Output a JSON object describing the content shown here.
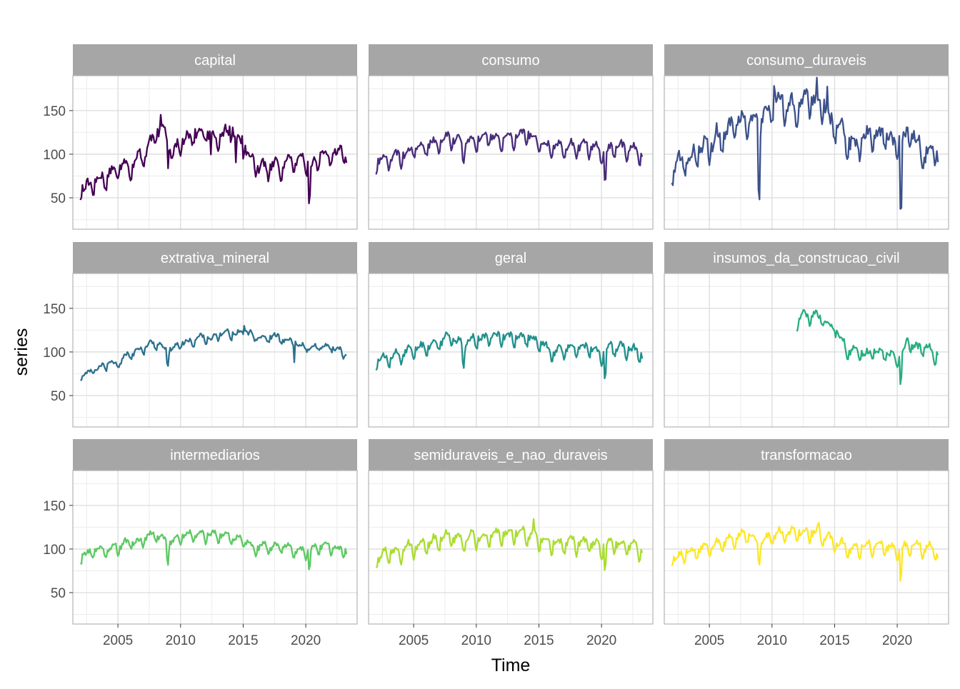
{
  "chart_data": {
    "type": "line",
    "layout": "facet-grid-3x3",
    "xlabel": "Time",
    "ylabel": "series",
    "xlim": [
      2001.4,
      2024.1
    ],
    "ylim": [
      14,
      190
    ],
    "x_ticks": [
      2005,
      2010,
      2015,
      2020
    ],
    "y_ticks": [
      50,
      100,
      150
    ],
    "grid": true,
    "legend": "none",
    "start_year": 2002,
    "end_year": 2023.25,
    "panels": [
      {
        "name": "capital",
        "color": "#440154",
        "start_year": 2002,
        "anchors": [
          [
            2002,
            60
          ],
          [
            2003,
            64
          ],
          [
            2004,
            72
          ],
          [
            2005,
            80
          ],
          [
            2006,
            86
          ],
          [
            2007,
            95
          ],
          [
            2008,
            118
          ],
          [
            2008.9,
            122
          ],
          [
            2009.3,
            98
          ],
          [
            2010,
            112
          ],
          [
            2011,
            122
          ],
          [
            2012,
            120
          ],
          [
            2013,
            118
          ],
          [
            2014,
            122
          ],
          [
            2015,
            112
          ],
          [
            2015.5,
            95
          ],
          [
            2016,
            82
          ],
          [
            2017,
            82
          ],
          [
            2018,
            86
          ],
          [
            2019,
            90
          ],
          [
            2020,
            86
          ],
          [
            2020.5,
            85
          ],
          [
            2021,
            95
          ],
          [
            2022,
            100
          ],
          [
            2023,
            98
          ],
          [
            2023.25,
            95
          ]
        ],
        "amplitude": 11,
        "noise": 5,
        "spikes": [
          [
            2009.0,
            -18
          ],
          [
            2020.3,
            -40
          ],
          [
            2013.9,
            18
          ],
          [
            2014.9,
            20
          ],
          [
            2008.4,
            20
          ],
          [
            2012.4,
            -28
          ],
          [
            2014.4,
            -25
          ]
        ]
      },
      {
        "name": "consumo",
        "color": "#472C7A",
        "start_year": 2002,
        "anchors": [
          [
            2002,
            88
          ],
          [
            2003,
            93
          ],
          [
            2004,
            96
          ],
          [
            2005,
            103
          ],
          [
            2006,
            108
          ],
          [
            2007,
            112
          ],
          [
            2008,
            117
          ],
          [
            2009,
            110
          ],
          [
            2010,
            117
          ],
          [
            2011,
            118
          ],
          [
            2012,
            117
          ],
          [
            2013,
            118
          ],
          [
            2014,
            119
          ],
          [
            2015,
            112
          ],
          [
            2016,
            105
          ],
          [
            2017,
            106
          ],
          [
            2018,
            108
          ],
          [
            2019,
            108
          ],
          [
            2020,
            100
          ],
          [
            2021,
            106
          ],
          [
            2022,
            104
          ],
          [
            2023,
            100
          ],
          [
            2023.25,
            96
          ]
        ],
        "amplitude": 11,
        "noise": 3.5,
        "spikes": [
          [
            2020.3,
            -33
          ],
          [
            2008.95,
            -10
          ]
        ]
      },
      {
        "name": "consumo_duraveis",
        "color": "#3B518B",
        "start_year": 2002,
        "anchors": [
          [
            2002,
            85
          ],
          [
            2003,
            90
          ],
          [
            2004,
            95
          ],
          [
            2005,
            110
          ],
          [
            2006,
            120
          ],
          [
            2007,
            128
          ],
          [
            2008,
            140
          ],
          [
            2009,
            130
          ],
          [
            2010,
            152
          ],
          [
            2011,
            156
          ],
          [
            2012,
            150
          ],
          [
            2013,
            155
          ],
          [
            2014,
            152
          ],
          [
            2015,
            130
          ],
          [
            2016,
            108
          ],
          [
            2017,
            112
          ],
          [
            2018,
            118
          ],
          [
            2019,
            122
          ],
          [
            2020,
            108
          ],
          [
            2021,
            118
          ],
          [
            2022,
            100
          ],
          [
            2023,
            98
          ],
          [
            2023.25,
            95
          ]
        ],
        "amplitude": 18,
        "noise": 7,
        "spikes": [
          [
            2008.95,
            -58
          ],
          [
            2020.3,
            -78
          ],
          [
            2010.2,
            24
          ],
          [
            2013.6,
            25
          ],
          [
            2014.4,
            25
          ]
        ]
      },
      {
        "name": "extrativa_mineral",
        "color": "#2C718E",
        "start_year": 2002,
        "anchors": [
          [
            2002,
            72
          ],
          [
            2003,
            78
          ],
          [
            2004,
            82
          ],
          [
            2005,
            88
          ],
          [
            2006,
            96
          ],
          [
            2007,
            102
          ],
          [
            2008,
            110
          ],
          [
            2009,
            100
          ],
          [
            2010,
            108
          ],
          [
            2011,
            114
          ],
          [
            2012,
            116
          ],
          [
            2013,
            117
          ],
          [
            2014,
            120
          ],
          [
            2015,
            124
          ],
          [
            2016,
            118
          ],
          [
            2017,
            116
          ],
          [
            2018,
            116
          ],
          [
            2019,
            110
          ],
          [
            2020,
            104
          ],
          [
            2021,
            104
          ],
          [
            2022,
            103
          ],
          [
            2023,
            100
          ],
          [
            2023.25,
            98
          ]
        ],
        "amplitude": 4.5,
        "noise": 3,
        "spikes": [
          [
            2008.95,
            -14
          ],
          [
            2019.1,
            -20
          ],
          [
            2015.1,
            8
          ]
        ]
      },
      {
        "name": "geral",
        "color": "#21908C",
        "start_year": 2002,
        "anchors": [
          [
            2002,
            88
          ],
          [
            2003,
            92
          ],
          [
            2004,
            96
          ],
          [
            2005,
            100
          ],
          [
            2006,
            104
          ],
          [
            2007,
            110
          ],
          [
            2008,
            115
          ],
          [
            2009,
            105
          ],
          [
            2010,
            114
          ],
          [
            2011,
            116
          ],
          [
            2012,
            115
          ],
          [
            2013,
            116
          ],
          [
            2014,
            116
          ],
          [
            2015,
            108
          ],
          [
            2016,
            100
          ],
          [
            2017,
            101
          ],
          [
            2018,
            103
          ],
          [
            2019,
            103
          ],
          [
            2020,
            97
          ],
          [
            2021,
            104
          ],
          [
            2022,
            102
          ],
          [
            2023,
            98
          ],
          [
            2023.25,
            95
          ]
        ],
        "amplitude": 10,
        "noise": 3,
        "spikes": [
          [
            2020.3,
            -26
          ],
          [
            2008.95,
            -12
          ]
        ]
      },
      {
        "name": "insumos_da_construcao_civil",
        "color": "#27AD81",
        "start_year": 2012,
        "anchors": [
          [
            2012,
            130
          ],
          [
            2012.5,
            138
          ],
          [
            2013,
            138
          ],
          [
            2013.6,
            142
          ],
          [
            2014,
            135
          ],
          [
            2015,
            128
          ],
          [
            2015.5,
            112
          ],
          [
            2016,
            102
          ],
          [
            2017,
            96
          ],
          [
            2018,
            98
          ],
          [
            2019,
            99
          ],
          [
            2020,
            92
          ],
          [
            2020.8,
            108
          ],
          [
            2021,
            108
          ],
          [
            2022,
            102
          ],
          [
            2023,
            96
          ],
          [
            2023.25,
            98
          ]
        ],
        "amplitude": 8,
        "noise": 4,
        "spikes": [
          [
            2020.3,
            -30
          ]
        ]
      },
      {
        "name": "intermediarios",
        "color": "#5DC863",
        "start_year": 2002,
        "anchors": [
          [
            2002,
            90
          ],
          [
            2003,
            95
          ],
          [
            2004,
            98
          ],
          [
            2005,
            102
          ],
          [
            2006,
            105
          ],
          [
            2007,
            110
          ],
          [
            2008,
            116
          ],
          [
            2009,
            103
          ],
          [
            2010,
            114
          ],
          [
            2011,
            115
          ],
          [
            2012,
            114
          ],
          [
            2013,
            114
          ],
          [
            2014,
            114
          ],
          [
            2015,
            108
          ],
          [
            2016,
            100
          ],
          [
            2017,
            101
          ],
          [
            2018,
            102
          ],
          [
            2019,
            100
          ],
          [
            2020,
            94
          ],
          [
            2021,
            102
          ],
          [
            2022,
            100
          ],
          [
            2023,
            97
          ],
          [
            2023.25,
            95
          ]
        ],
        "amplitude": 8,
        "noise": 2.5,
        "spikes": [
          [
            2020.3,
            -20
          ],
          [
            2008.95,
            -14
          ]
        ]
      },
      {
        "name": "semiduraveis_e_nao_duraveis",
        "color": "#AADC32",
        "start_year": 2002,
        "anchors": [
          [
            2002,
            88
          ],
          [
            2003,
            93
          ],
          [
            2004,
            96
          ],
          [
            2005,
            100
          ],
          [
            2006,
            104
          ],
          [
            2007,
            108
          ],
          [
            2008,
            112
          ],
          [
            2009,
            108
          ],
          [
            2010,
            112
          ],
          [
            2011,
            113
          ],
          [
            2012,
            114
          ],
          [
            2013,
            116
          ],
          [
            2014,
            116
          ],
          [
            2015,
            110
          ],
          [
            2016,
            104
          ],
          [
            2017,
            105
          ],
          [
            2018,
            106
          ],
          [
            2019,
            106
          ],
          [
            2020,
            100
          ],
          [
            2021,
            104
          ],
          [
            2022,
            103
          ],
          [
            2023,
            99
          ],
          [
            2023.25,
            96
          ]
        ],
        "amplitude": 12,
        "noise": 3,
        "spikes": [
          [
            2020.3,
            -24
          ],
          [
            2014.6,
            10
          ]
        ]
      },
      {
        "name": "transformacao",
        "color": "#FDE725",
        "start_year": 2002,
        "anchors": [
          [
            2002,
            88
          ],
          [
            2003,
            92
          ],
          [
            2004,
            97
          ],
          [
            2005,
            101
          ],
          [
            2006,
            105
          ],
          [
            2007,
            110
          ],
          [
            2008,
            116
          ],
          [
            2009,
            104
          ],
          [
            2010,
            114
          ],
          [
            2011,
            115
          ],
          [
            2012,
            115
          ],
          [
            2013,
            116
          ],
          [
            2014,
            116
          ],
          [
            2015,
            106
          ],
          [
            2016,
            99
          ],
          [
            2017,
            100
          ],
          [
            2018,
            102
          ],
          [
            2019,
            102
          ],
          [
            2020,
            95
          ],
          [
            2021,
            103
          ],
          [
            2022,
            101
          ],
          [
            2023,
            97
          ],
          [
            2023.25,
            94
          ]
        ],
        "amplitude": 10,
        "noise": 3,
        "spikes": [
          [
            2020.3,
            -30
          ],
          [
            2008.95,
            -10
          ],
          [
            2013.7,
            10
          ]
        ]
      }
    ]
  }
}
